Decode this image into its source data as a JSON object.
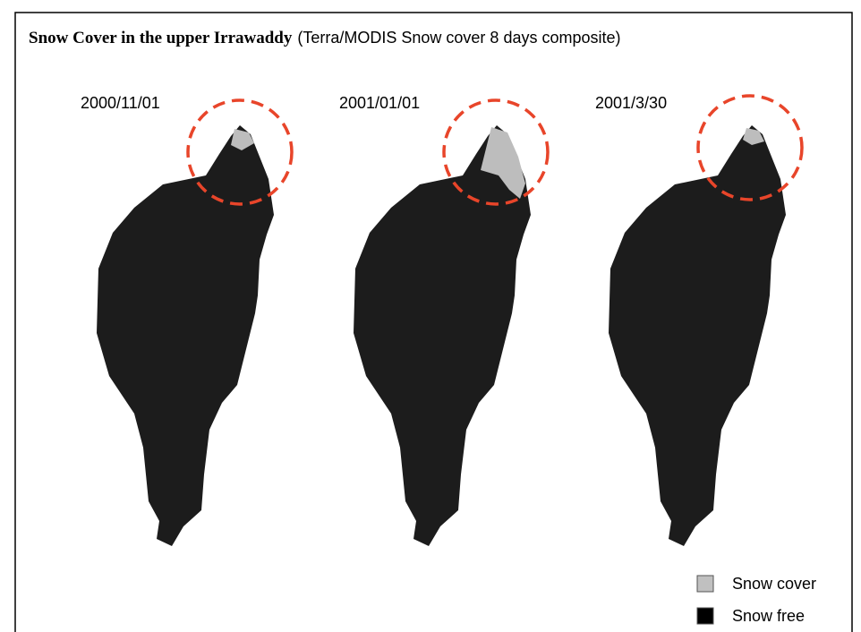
{
  "title": {
    "main": "Snow Cover in the upper Irrawaddy",
    "subtitle": "(Terra/MODIS Snow cover 8 days composite)"
  },
  "panels": [
    {
      "date": "2000/11/01"
    },
    {
      "date": "2001/01/01"
    },
    {
      "date": "2001/3/30"
    }
  ],
  "legend": [
    {
      "label": "Snow cover",
      "color": "#c0c0c0"
    },
    {
      "label": "Snow free",
      "color": "#000000"
    }
  ]
}
